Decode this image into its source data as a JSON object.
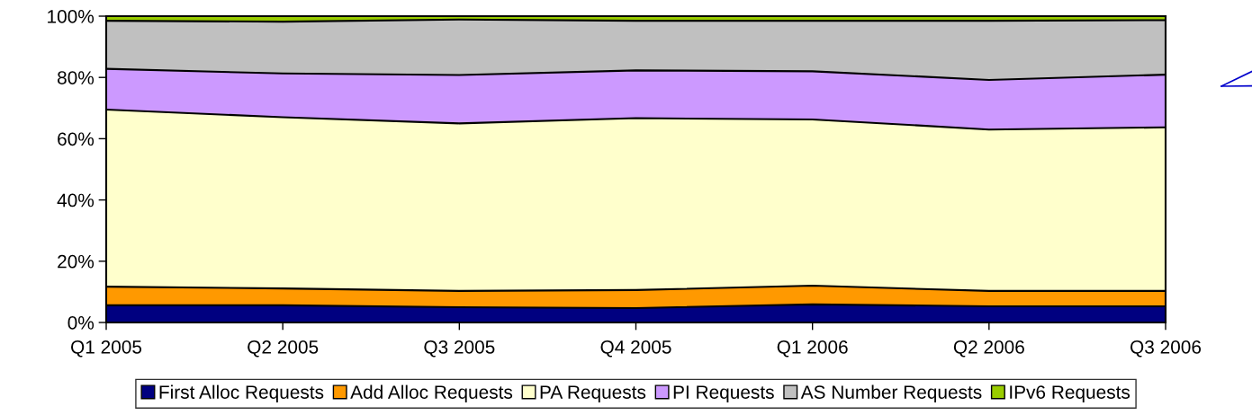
{
  "chart_data": {
    "type": "area",
    "stacked": true,
    "categories": [
      "Q1 2005",
      "Q2 2005",
      "Q3 2005",
      "Q4 2005",
      "Q1 2006",
      "Q2 2006",
      "Q3 2006"
    ],
    "series": [
      {
        "name": "First Alloc Requests",
        "color": "#000080",
        "values": [
          5.6,
          5.6,
          5.0,
          4.7,
          5.9,
          5.3,
          5.3
        ]
      },
      {
        "name": "Add Alloc Requests",
        "color": "#ff9900",
        "values": [
          6.1,
          5.5,
          5.3,
          5.9,
          6.1,
          5.0,
          5.0
        ]
      },
      {
        "name": "PA Requests",
        "color": "#ffffcc",
        "values": [
          57.8,
          55.9,
          54.7,
          56.1,
          54.3,
          52.7,
          53.4
        ]
      },
      {
        "name": "PI Requests",
        "color": "#cc99ff",
        "values": [
          13.3,
          14.3,
          15.8,
          15.6,
          15.7,
          16.2,
          17.2
        ]
      },
      {
        "name": "AS Number Requests",
        "color": "#c0c0c0",
        "values": [
          15.7,
          16.9,
          18.1,
          16.2,
          16.5,
          19.3,
          17.8
        ]
      },
      {
        "name": "IPv6 Requests",
        "color": "#99cc00",
        "values": [
          1.5,
          1.8,
          1.1,
          1.5,
          1.5,
          1.5,
          1.3
        ]
      }
    ],
    "ylim": [
      0,
      100
    ],
    "yticks": [
      {
        "value": 0,
        "label": "0%"
      },
      {
        "value": 20,
        "label": "20%"
      },
      {
        "value": 40,
        "label": "40%"
      },
      {
        "value": 60,
        "label": "60%"
      },
      {
        "value": 80,
        "label": "80%"
      },
      {
        "value": 100,
        "label": "100%"
      }
    ],
    "grid": false,
    "legend": "bottom"
  }
}
